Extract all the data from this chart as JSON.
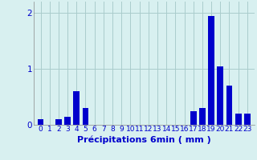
{
  "categories": [
    0,
    1,
    2,
    3,
    4,
    5,
    6,
    7,
    8,
    9,
    10,
    11,
    12,
    13,
    14,
    15,
    16,
    17,
    18,
    19,
    20,
    21,
    22,
    23
  ],
  "values": [
    0.1,
    0.0,
    0.1,
    0.15,
    0.6,
    0.3,
    0.0,
    0.0,
    0.0,
    0.0,
    0.0,
    0.0,
    0.0,
    0.0,
    0.0,
    0.0,
    0.0,
    0.25,
    0.3,
    1.95,
    1.05,
    0.7,
    0.2,
    0.2
  ],
  "bar_color": "#0000cc",
  "background_color": "#d8f0f0",
  "grid_color": "#aacccc",
  "xlabel": "Précipitations 6min ( mm )",
  "ylim": [
    0,
    2.2
  ],
  "yticks": [
    0,
    1,
    2
  ],
  "bar_width": 0.7,
  "xlabel_fontsize": 8,
  "tick_fontsize": 6.5
}
